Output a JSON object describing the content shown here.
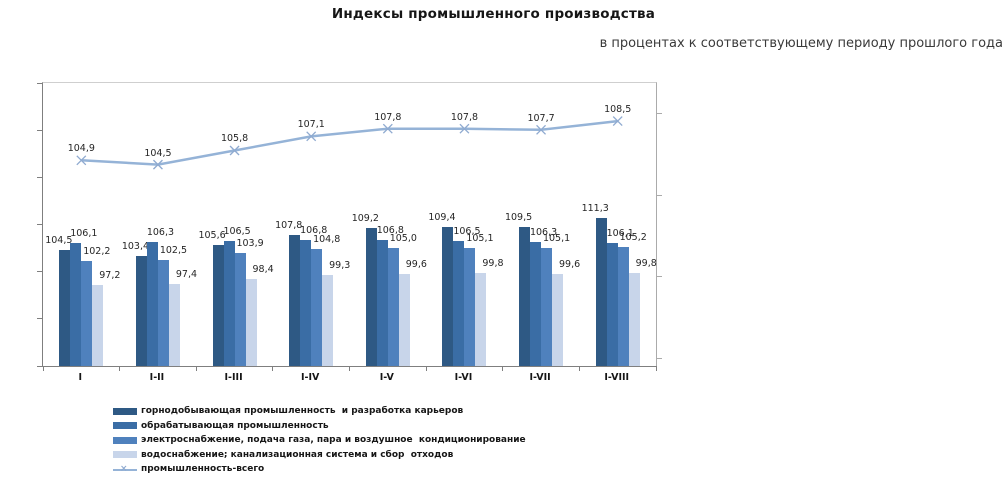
{
  "title": "Индексы промышленного производства",
  "subtitle": "в процентах к соответствующему периоду прошлого года",
  "chart_data": {
    "type": "bar",
    "categories": [
      "I",
      "I-II",
      "I-III",
      "I-IV",
      "I-V",
      "I-VI",
      "I-VII",
      "I-VIII"
    ],
    "series": [
      {
        "name": "горнодобывающая промышленность  и разработка карьеров",
        "color": "#2E5984",
        "values": [
          104.5,
          103.4,
          105.6,
          107.8,
          109.2,
          109.4,
          109.5,
          111.3
        ]
      },
      {
        "name": "обрабатывающая промышленность",
        "color": "#3A6DA5",
        "values": [
          106.1,
          106.3,
          106.5,
          106.8,
          106.8,
          106.5,
          106.3,
          106.1
        ]
      },
      {
        "name": "электроснабжение, подача газа, пара и воздушное  кондиционирование",
        "color": "#4F81BD",
        "values": [
          102.2,
          102.5,
          103.9,
          104.8,
          105.0,
          105.1,
          105.1,
          105.2
        ]
      },
      {
        "name": "водоснабжение; канализационная система и сбор  отходов",
        "color": "#C8D5EA",
        "values": [
          97.2,
          97.4,
          98.4,
          99.3,
          99.6,
          99.8,
          99.6,
          99.8
        ]
      }
    ],
    "line_series": {
      "name": "промышленность-всего",
      "color": "#95B3D7",
      "marker": "x-marker",
      "marker_color": "#8FAAD0",
      "values": [
        104.9,
        104.5,
        105.8,
        107.1,
        107.8,
        107.8,
        107.7,
        108.5
      ]
    },
    "ylim_primary": [
      80,
      140
    ],
    "ylim_secondary": [
      86,
      112
    ],
    "grid": false,
    "legend_position": "bottom-left",
    "decimal_separator": ","
  }
}
